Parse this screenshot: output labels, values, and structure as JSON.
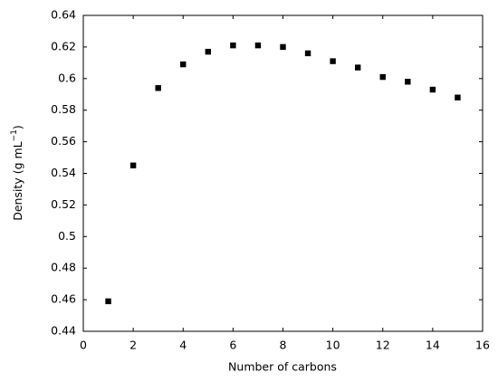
{
  "chart_data": {
    "type": "scatter",
    "xlabel": "Number of carbons",
    "ylabel": {
      "text": "Density (g mL",
      "superscript": "−1",
      "close": ")"
    },
    "x": [
      1,
      2,
      3,
      4,
      5,
      6,
      7,
      8,
      9,
      10,
      11,
      12,
      13,
      14,
      15
    ],
    "series": [
      {
        "color": "#000000",
        "values": [
          0.459,
          0.545,
          0.594,
          0.609,
          0.617,
          0.621,
          0.621,
          0.62,
          0.616,
          0.611,
          0.607,
          0.601,
          0.598,
          0.593,
          0.588
        ]
      }
    ],
    "xlim": [
      0,
      16
    ],
    "xticks": [
      0,
      2,
      4,
      6,
      8,
      10,
      12,
      14,
      16
    ],
    "ylim": [
      0.44,
      0.64
    ],
    "yticks": [
      0.44,
      0.46,
      0.48,
      0.5,
      0.52,
      0.54,
      0.56,
      0.58,
      0.6,
      0.62,
      0.64
    ],
    "grid": false
  }
}
